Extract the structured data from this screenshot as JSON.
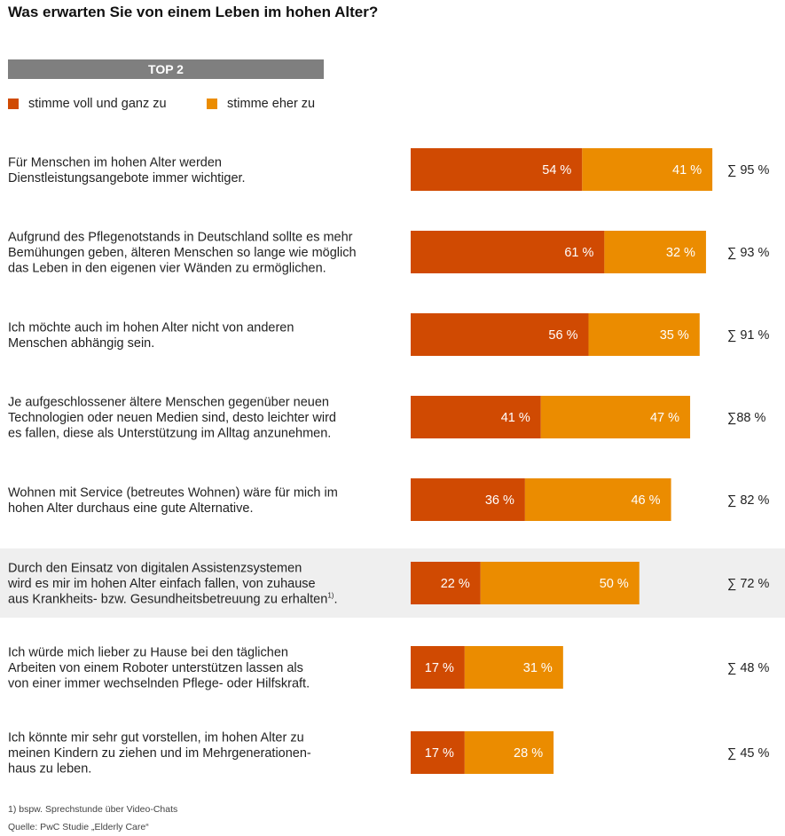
{
  "title": "Was erwarten Sie von einem Leben im hohen Alter?",
  "header_box": "TOP 2",
  "legend": [
    {
      "label": "stimme voll und ganz zu",
      "color": "#d04a02"
    },
    {
      "label": "stimme eher zu",
      "color": "#eb8c00"
    }
  ],
  "footnote": "1) bspw. Sprechstunde über Video-Chats",
  "source": "Quelle: PwC Studie „Elderly Care“",
  "chart_data": {
    "type": "bar",
    "orientation": "horizontal",
    "stacked": true,
    "categories": [
      [
        "Für Menschen im hohen Alter werden",
        "Dienstleistungsangebote immer wichtiger."
      ],
      [
        "Aufgrund des Pflegenotstands in Deutschland sollte es mehr",
        "Bemühungen geben, älteren Menschen so lange wie möglich",
        "das Leben in den eigenen vier Wänden zu ermöglichen."
      ],
      [
        "Ich möchte auch im hohen Alter nicht von anderen",
        "Menschen abhängig sein."
      ],
      [
        "Je aufgeschlossener ältere Menschen gegenüber neuen",
        "Technologien oder neuen Medien sind, desto leichter wird",
        "es fallen, diese als Unterstützung im Alltag anzunehmen."
      ],
      [
        "Wohnen mit Service (betreutes Wohnen) wäre für mich im",
        "hohen Alter durchaus eine gute Alternative."
      ],
      [
        "Durch den Einsatz von digitalen Assistenzsystemen",
        "wird es mir im hohen Alter einfach fallen, von zuhause",
        "aus Krankheits- bzw. Gesundheitsbetreuung zu erhalten"
      ],
      [
        "Ich würde mich lieber zu Hause bei den täglichen",
        "Arbeiten von einem Roboter unterstützen lassen als",
        "von einer immer wechselnden Pflege- oder Hilfskraft."
      ],
      [
        "Ich könnte mir sehr gut vorstellen, im hohen Alter zu",
        "meinen Kindern zu ziehen und im Mehrgenerationen-",
        "haus zu leben."
      ]
    ],
    "footnote_marks": [
      "",
      "",
      "",
      "",
      "",
      "1)",
      "",
      ""
    ],
    "highlighted_row": 5,
    "series": [
      {
        "name": "stimme voll und ganz zu",
        "values": [
          54,
          61,
          56,
          41,
          36,
          22,
          17,
          17
        ],
        "labels": [
          "54 %",
          "61 %",
          "56 %",
          "41 %",
          "36 %",
          "22 %",
          "17 %",
          "17 %"
        ]
      },
      {
        "name": "stimme eher zu",
        "values": [
          41,
          32,
          35,
          47,
          46,
          50,
          31,
          28
        ],
        "labels": [
          "41 %",
          "32 %",
          "35 %",
          "47 %",
          "46 %",
          "50 %",
          "31 %",
          "28 %"
        ]
      }
    ],
    "totals": [
      "∑ 95 %",
      "∑ 93 %",
      "∑ 91 %",
      "∑88 %",
      "∑ 82 %",
      "∑ 72 %",
      "∑ 48 %",
      "∑ 45 %"
    ],
    "colors": [
      "#d04a02",
      "#eb8c00"
    ],
    "highlight_color": "#efefef",
    "xlim": [
      0,
      100
    ]
  }
}
